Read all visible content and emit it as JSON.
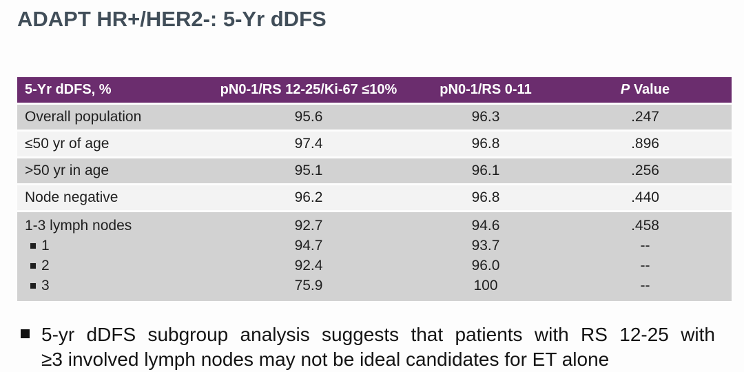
{
  "title": "ADAPT HR+/HER2-: 5-Yr dDFS",
  "table": {
    "headers": [
      "5-Yr dDFS, %",
      "pN0-1/RS 12-25/Ki-67 ≤10%",
      "pN0-1/RS 0-11",
      "P Value"
    ],
    "rows": [
      {
        "label": "Overall population",
        "values": [
          "95.6",
          "96.3",
          ".247"
        ]
      },
      {
        "label": "≤50 yr of age",
        "values": [
          "97.4",
          "96.8",
          ".896"
        ]
      },
      {
        "label": ">50 yr in age",
        "values": [
          "95.1",
          "96.1",
          ".256"
        ]
      },
      {
        "label": "Node negative",
        "values": [
          "96.2",
          "96.8",
          ".440"
        ]
      },
      {
        "label": "1-3 lymph nodes",
        "values": [
          "92.7",
          "94.6",
          ".458"
        ]
      },
      {
        "label": "1",
        "sub": true,
        "values": [
          "94.7",
          "93.7",
          "--"
        ]
      },
      {
        "label": "2",
        "sub": true,
        "values": [
          "92.4",
          "96.0",
          "--"
        ]
      },
      {
        "label": "3",
        "sub": true,
        "values": [
          "75.9",
          "100",
          "--"
        ]
      }
    ]
  },
  "note": {
    "line1": "5-yr dDFS subgroup analysis suggests that patients with RS 12-25 with",
    "line2": "≥3 involved lymph nodes may not be ideal candidates for ET alone"
  },
  "colors": {
    "header_purple": "#6b2d6e",
    "row_dark": "#d2d2d2",
    "row_light": "#f3f3f3",
    "title_slate": "#414e59",
    "text_dark": "#1f1f1f"
  }
}
